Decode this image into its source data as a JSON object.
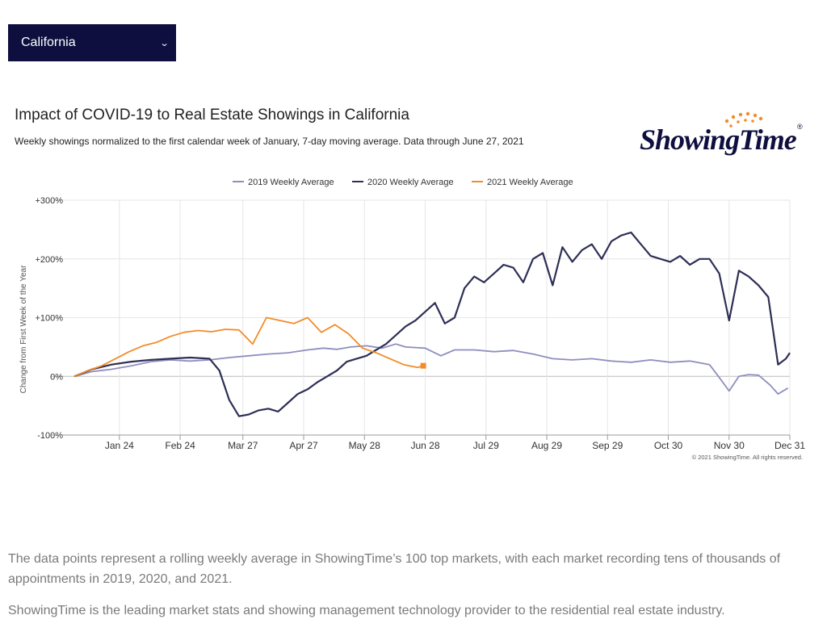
{
  "dropdown": {
    "selected": "California",
    "chevron_icon": "chevron-down-icon"
  },
  "chart_header": {
    "title": "Impact of COVID-19 to Real Estate Showings in California",
    "subtitle": "Weekly showings normalized to the first calendar week of January, 7-day moving average. Data through June 27, 2021"
  },
  "logo": {
    "text": "ShowingTime",
    "registered": "®",
    "accent_color": "#f28c28"
  },
  "credit": "© 2021 ShowingTime. All rights reserved.",
  "chart_data": {
    "type": "line",
    "title": "Impact of COVID-19 to Real Estate Showings in California",
    "ylabel": "Change from First Week of the Year",
    "ylim": [
      -100,
      300
    ],
    "yticks": [
      -100,
      0,
      100,
      200,
      300
    ],
    "ytick_labels": [
      "-100%",
      "0%",
      "+100%",
      "+200%",
      "+300%"
    ],
    "x_ticks": [
      "Jan 24",
      "Feb 24",
      "Mar 27",
      "Apr 27",
      "May 28",
      "Jun 28",
      "Jul 29",
      "Aug 29",
      "Sep 29",
      "Oct 30",
      "Nov 30",
      "Dec 31"
    ],
    "x_tick_days": [
      24,
      55,
      87,
      118,
      149,
      180,
      211,
      242,
      273,
      304,
      335,
      366
    ],
    "xlim": [
      1,
      366
    ],
    "grid": true,
    "legend_position": "top-center",
    "series": [
      {
        "name": "2019 Weekly Average",
        "color": "#8e8ec0",
        "x": [
          1,
          10,
          20,
          30,
          40,
          50,
          60,
          70,
          80,
          90,
          100,
          110,
          120,
          128,
          135,
          142,
          150,
          158,
          165,
          170,
          180,
          188,
          195,
          205,
          215,
          225,
          235,
          245,
          255,
          265,
          275,
          285,
          295,
          305,
          315,
          325,
          330,
          335,
          340,
          345,
          350,
          356,
          360,
          365
        ],
        "y": [
          0,
          8,
          12,
          18,
          25,
          28,
          26,
          28,
          32,
          35,
          38,
          40,
          45,
          48,
          46,
          50,
          52,
          48,
          55,
          50,
          48,
          35,
          45,
          45,
          42,
          44,
          38,
          30,
          28,
          30,
          26,
          24,
          28,
          24,
          26,
          20,
          -2,
          -25,
          0,
          3,
          2,
          -15,
          -30,
          -20
        ]
      },
      {
        "name": "2020 Weekly Average",
        "color": "#2e2f55",
        "x": [
          1,
          10,
          20,
          30,
          40,
          50,
          60,
          70,
          75,
          80,
          85,
          90,
          95,
          100,
          105,
          110,
          115,
          120,
          125,
          130,
          135,
          140,
          145,
          150,
          155,
          160,
          165,
          170,
          175,
          180,
          185,
          190,
          195,
          200,
          205,
          210,
          215,
          220,
          225,
          230,
          235,
          240,
          245,
          250,
          255,
          260,
          265,
          270,
          275,
          280,
          285,
          290,
          295,
          300,
          305,
          310,
          315,
          320,
          325,
          330,
          335,
          340,
          345,
          350,
          355,
          360,
          364,
          366
        ],
        "y": [
          0,
          12,
          20,
          25,
          28,
          30,
          32,
          30,
          10,
          -40,
          -68,
          -65,
          -58,
          -55,
          -60,
          -45,
          -30,
          -22,
          -10,
          0,
          10,
          25,
          30,
          35,
          45,
          55,
          70,
          85,
          95,
          110,
          125,
          90,
          100,
          150,
          170,
          160,
          175,
          190,
          185,
          160,
          200,
          210,
          155,
          220,
          195,
          215,
          225,
          200,
          230,
          240,
          245,
          225,
          205,
          200,
          195,
          205,
          190,
          200,
          200,
          175,
          95,
          180,
          170,
          155,
          135,
          20,
          30,
          40
        ]
      },
      {
        "name": "2021 Weekly Average",
        "color": "#f28c28",
        "x": [
          1,
          8,
          15,
          22,
          29,
          36,
          43,
          50,
          57,
          64,
          71,
          78,
          85,
          92,
          99,
          106,
          113,
          120,
          127,
          134,
          141,
          148,
          155,
          162,
          169,
          176,
          179
        ],
        "y": [
          0,
          10,
          18,
          30,
          42,
          52,
          58,
          68,
          75,
          78,
          76,
          80,
          79,
          55,
          100,
          95,
          90,
          100,
          75,
          88,
          72,
          48,
          40,
          30,
          20,
          15,
          18
        ]
      }
    ]
  },
  "paragraphs": [
    "The data points represent a rolling weekly average in ShowingTime’s 100 top markets, with each market recording tens of thousands of appointments in 2019, 2020, and 2021.",
    "ShowingTime is the leading market stats and showing management technology provider to the residential real estate industry."
  ]
}
